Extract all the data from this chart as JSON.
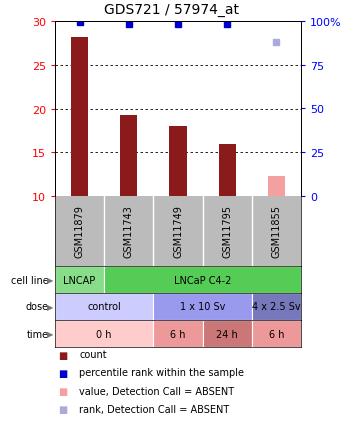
{
  "title": "GDS721 / 57974_at",
  "samples": [
    "GSM11879",
    "GSM11743",
    "GSM11749",
    "GSM11795",
    "GSM11855"
  ],
  "bar_values": [
    28.2,
    19.3,
    18.0,
    16.0,
    null
  ],
  "bar_absent_value": 12.3,
  "bar_color_present": "#8B1A1A",
  "bar_color_absent": "#F4A0A0",
  "percentile_values": [
    99.5,
    98.5,
    98.5,
    98.5,
    null
  ],
  "percentile_absent": 88.0,
  "percentile_color_present": "#0000CC",
  "percentile_color_absent": "#AAAADD",
  "ylim_left": [
    10,
    30
  ],
  "ylim_right": [
    0,
    100
  ],
  "yticks_left": [
    10,
    15,
    20,
    25,
    30
  ],
  "yticks_right": [
    0,
    25,
    50,
    75,
    100
  ],
  "ytick_labels_right": [
    "0",
    "25",
    "50",
    "75",
    "100%"
  ],
  "grid_values": [
    15,
    20,
    25
  ],
  "cell_line_groups": [
    {
      "label": "LNCAP",
      "start": 0,
      "end": 1,
      "color": "#88DD88"
    },
    {
      "label": "LNCaP C4-2",
      "start": 1,
      "end": 5,
      "color": "#55CC55"
    }
  ],
  "dose_groups": [
    {
      "label": "control",
      "start": 0,
      "end": 2,
      "color": "#CCCCFF"
    },
    {
      "label": "1 x 10 Sv",
      "start": 2,
      "end": 4,
      "color": "#9999EE"
    },
    {
      "label": "4 x 2.5 Sv",
      "start": 4,
      "end": 5,
      "color": "#7777BB"
    }
  ],
  "time_groups": [
    {
      "label": "0 h",
      "start": 0,
      "end": 2,
      "color": "#FFCCCC"
    },
    {
      "label": "6 h",
      "start": 2,
      "end": 3,
      "color": "#EE9999"
    },
    {
      "label": "24 h",
      "start": 3,
      "end": 4,
      "color": "#CC7777"
    },
    {
      "label": "6 h",
      "start": 4,
      "end": 5,
      "color": "#EE9999"
    }
  ],
  "row_labels": [
    "cell line",
    "dose",
    "time"
  ],
  "legend_items": [
    {
      "color": "#8B1A1A",
      "label": "count"
    },
    {
      "color": "#0000CC",
      "label": "percentile rank within the sample"
    },
    {
      "color": "#F4A0A0",
      "label": "value, Detection Call = ABSENT"
    },
    {
      "color": "#AAAADD",
      "label": "rank, Detection Call = ABSENT"
    }
  ],
  "bar_width": 0.35,
  "sample_bg_color": "#BBBBBB",
  "plot_bg_color": "#FFFFFF",
  "fig_width": 3.43,
  "fig_height": 4.35,
  "dpi": 100
}
